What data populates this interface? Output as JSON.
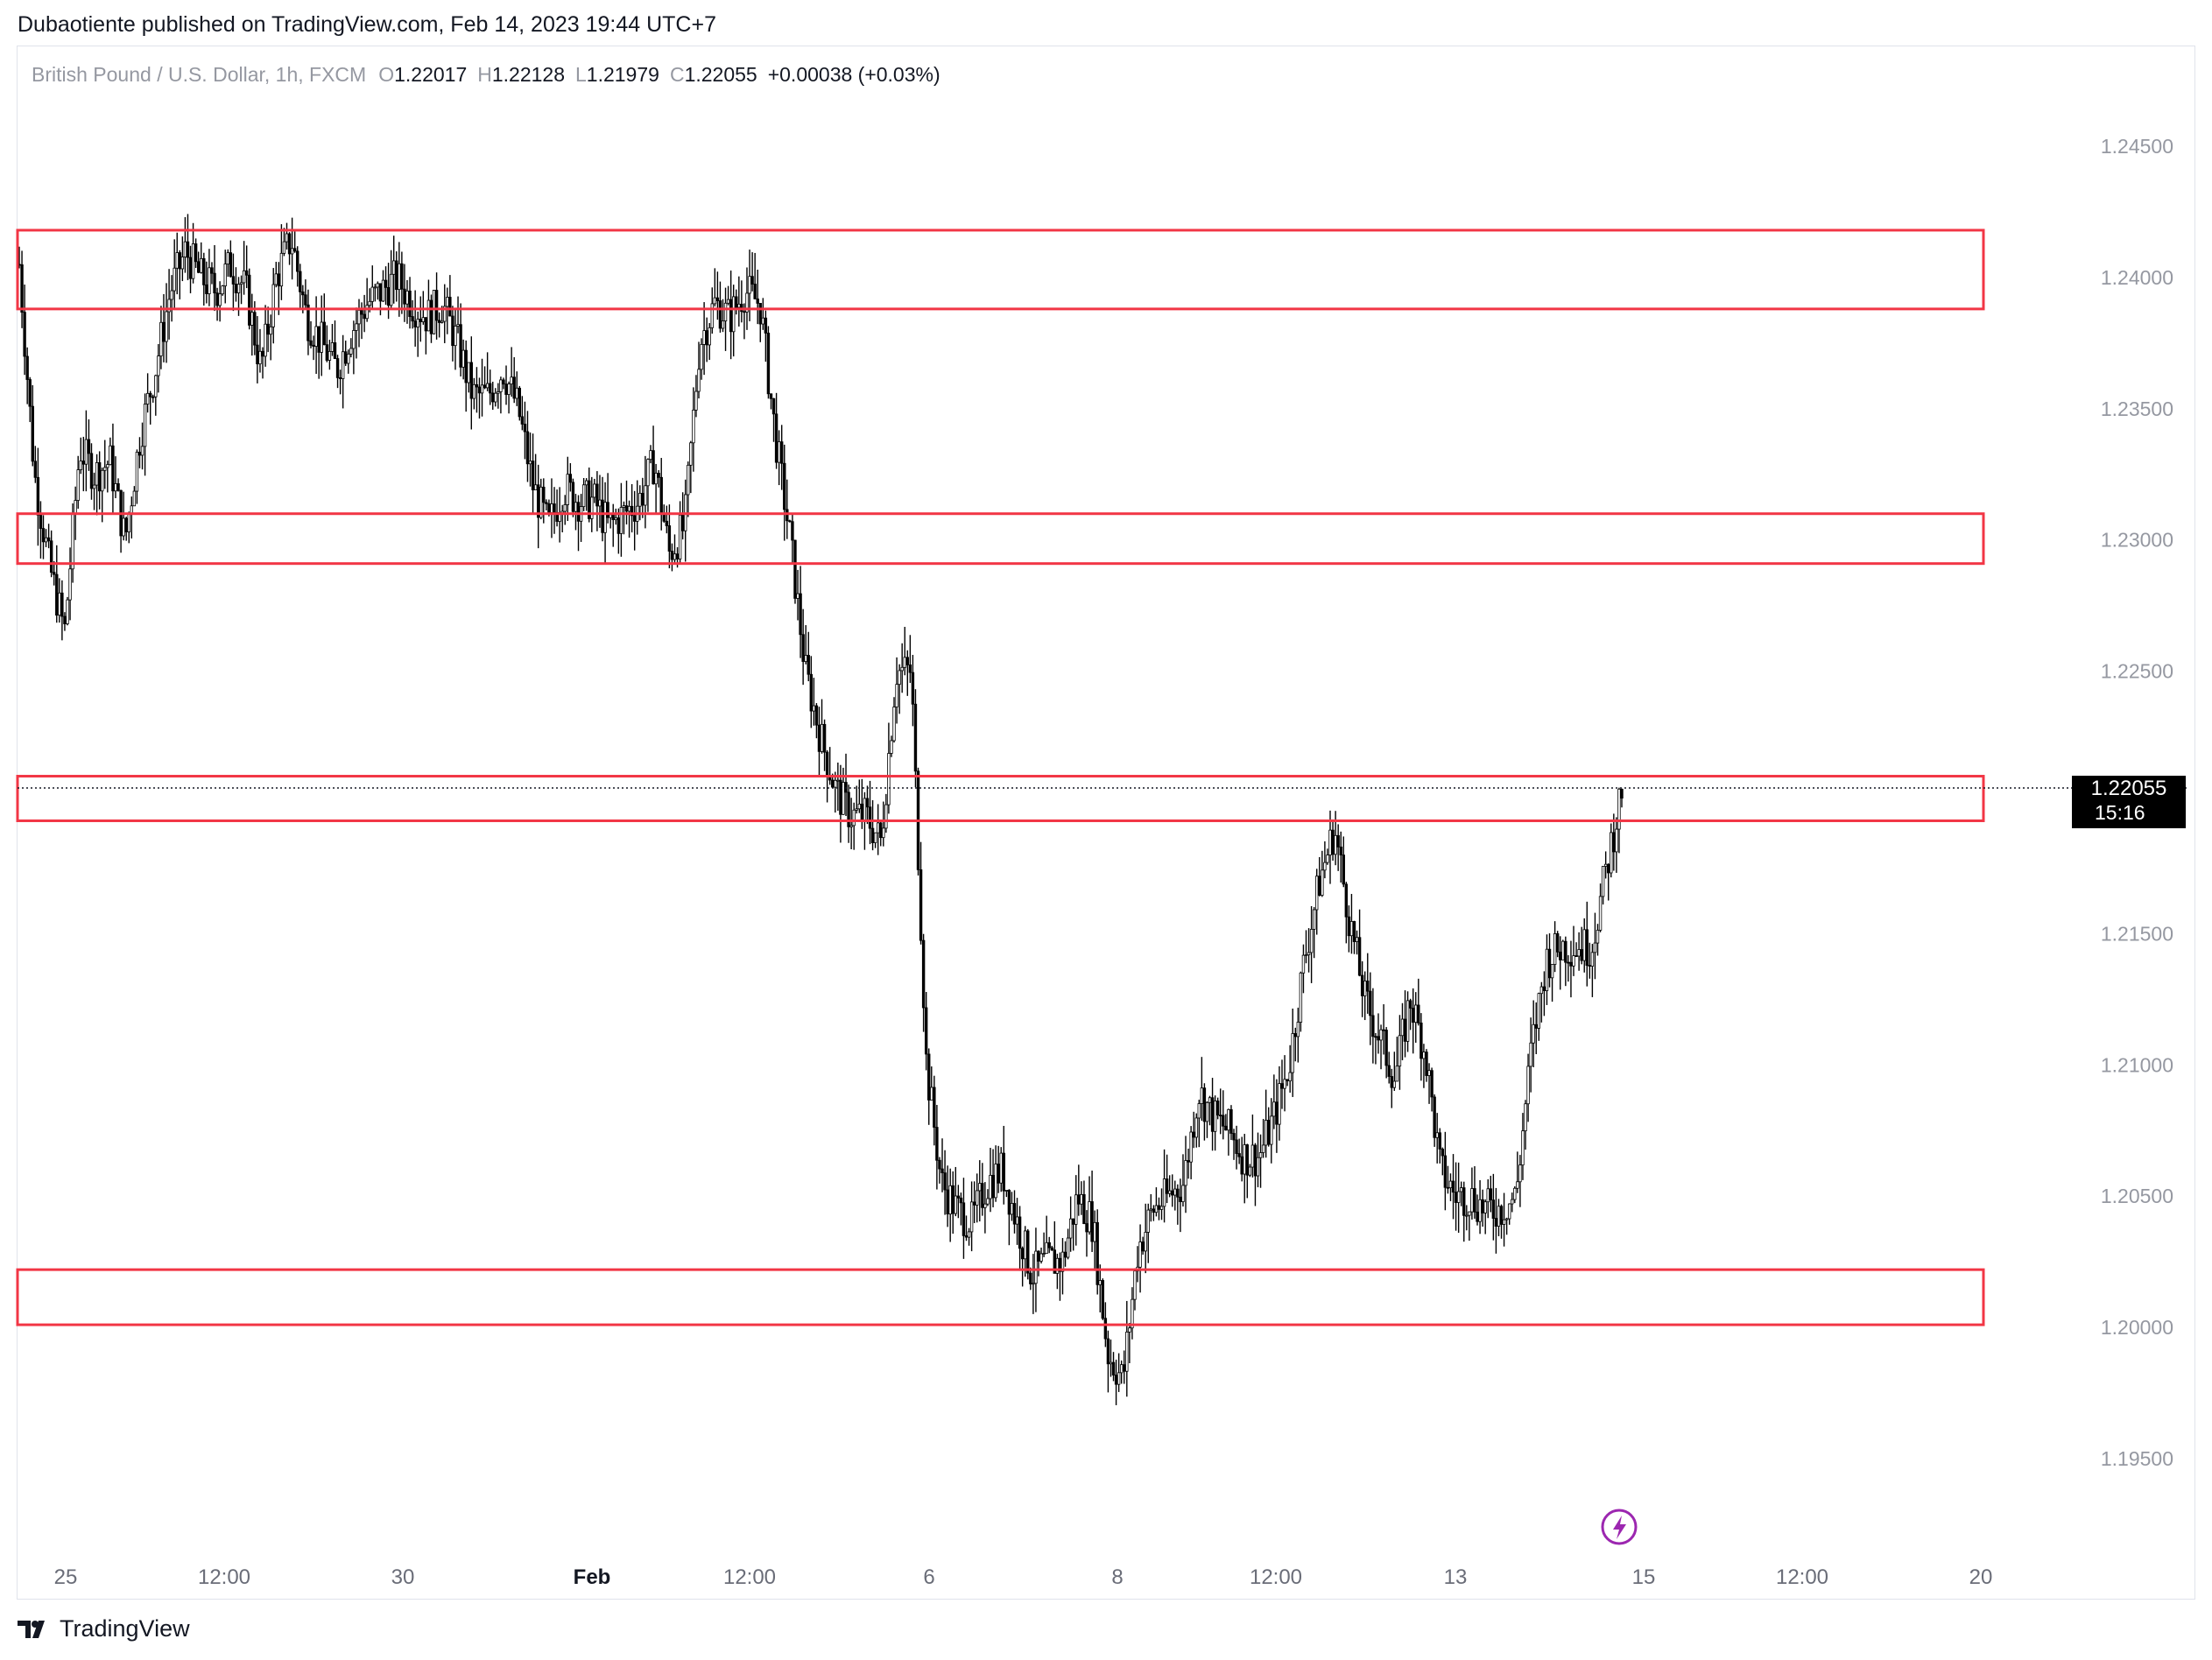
{
  "header": {
    "published_text": "Dubaotiente published on TradingView.com, Feb 14, 2023 19:44 UTC+7"
  },
  "legend": {
    "symbol": "British Pound / U.S. Dollar, 1h, FXCM",
    "open_key": "O",
    "open_value": "1.22017",
    "high_key": "H",
    "high_value": "1.22128",
    "low_key": "L",
    "low_value": "1.21979",
    "close_key": "C",
    "close_value": "1.22055",
    "change": "+0.00038 (+0.03%)"
  },
  "footer": {
    "brand": "TradingView"
  },
  "colors": {
    "candle": "#000000",
    "zone": "#f23645",
    "axis_text": "#9598a1",
    "price_label_bg": "#000000",
    "lightning": "#9c27b0"
  },
  "icons": {
    "lightning": "lightning-icon",
    "logo": "tradingview-logo-icon"
  },
  "chart_data": {
    "type": "candlestick",
    "symbol": "GBPUSD",
    "timeframe": "1h",
    "ylim": [
      1.1925,
      1.2485
    ],
    "price_ticks": [
      "1.24500",
      "1.24000",
      "1.23500",
      "1.23000",
      "1.22500",
      "1.22000",
      "1.21500",
      "1.21000",
      "1.20500",
      "1.20000",
      "1.19500"
    ],
    "time_ticks": [
      {
        "label": "25",
        "bold": false
      },
      {
        "label": "12:00",
        "bold": false
      },
      {
        "label": "30",
        "bold": false
      },
      {
        "label": "Feb",
        "bold": true
      },
      {
        "label": "12:00",
        "bold": false
      },
      {
        "label": "6",
        "bold": false
      },
      {
        "label": "8",
        "bold": false
      },
      {
        "label": "12:00",
        "bold": false
      },
      {
        "label": "13",
        "bold": false
      },
      {
        "label": "15",
        "bold": false
      },
      {
        "label": "12:00",
        "bold": false
      },
      {
        "label": "20",
        "bold": false
      }
    ],
    "last_price": "1.22055",
    "countdown": "15:16",
    "zones": [
      {
        "top": 1.2418,
        "bottom": 1.2388
      },
      {
        "top": 1.231,
        "bottom": 1.2291
      },
      {
        "top": 1.221,
        "bottom": 1.2193
      },
      {
        "top": 1.2022,
        "bottom": 1.2001
      }
    ],
    "price_path": [
      1.2405,
      1.2325,
      1.229,
      1.2265,
      1.2335,
      1.2325,
      1.233,
      1.23,
      1.234,
      1.2365,
      1.2395,
      1.241,
      1.24,
      1.2395,
      1.2405,
      1.2395,
      1.2365,
      1.24,
      1.2415,
      1.2385,
      1.2375,
      1.2365,
      1.238,
      1.239,
      1.2395,
      1.24,
      1.239,
      1.2385,
      1.239,
      1.2375,
      1.2355,
      1.2355,
      1.2365,
      1.235,
      1.232,
      1.2305,
      1.232,
      1.2315,
      1.2315,
      1.2305,
      1.231,
      1.2315,
      1.233,
      1.2295,
      1.2305,
      1.2375,
      1.239,
      1.2385,
      1.2395,
      1.239,
      1.234,
      1.23,
      1.225,
      1.2225,
      1.2205,
      1.2195,
      1.2195,
      1.2185,
      1.225,
      1.225,
      1.21,
      1.2055,
      1.2045,
      1.204,
      1.2055,
      1.206,
      1.204,
      1.202,
      1.2025,
      1.2025,
      1.205,
      1.204,
      1.199,
      1.198,
      1.203,
      1.2045,
      1.205,
      1.2055,
      1.209,
      1.208,
      1.2075,
      1.2065,
      1.2065,
      1.208,
      1.21,
      1.214,
      1.217,
      1.219,
      1.2155,
      1.2125,
      1.211,
      1.2095,
      1.2125,
      1.2105,
      1.206,
      1.205,
      1.205,
      1.2045,
      1.2045,
      1.205,
      1.2105,
      1.214,
      1.2145,
      1.2145,
      1.2145,
      1.2175,
      1.2205
    ]
  }
}
